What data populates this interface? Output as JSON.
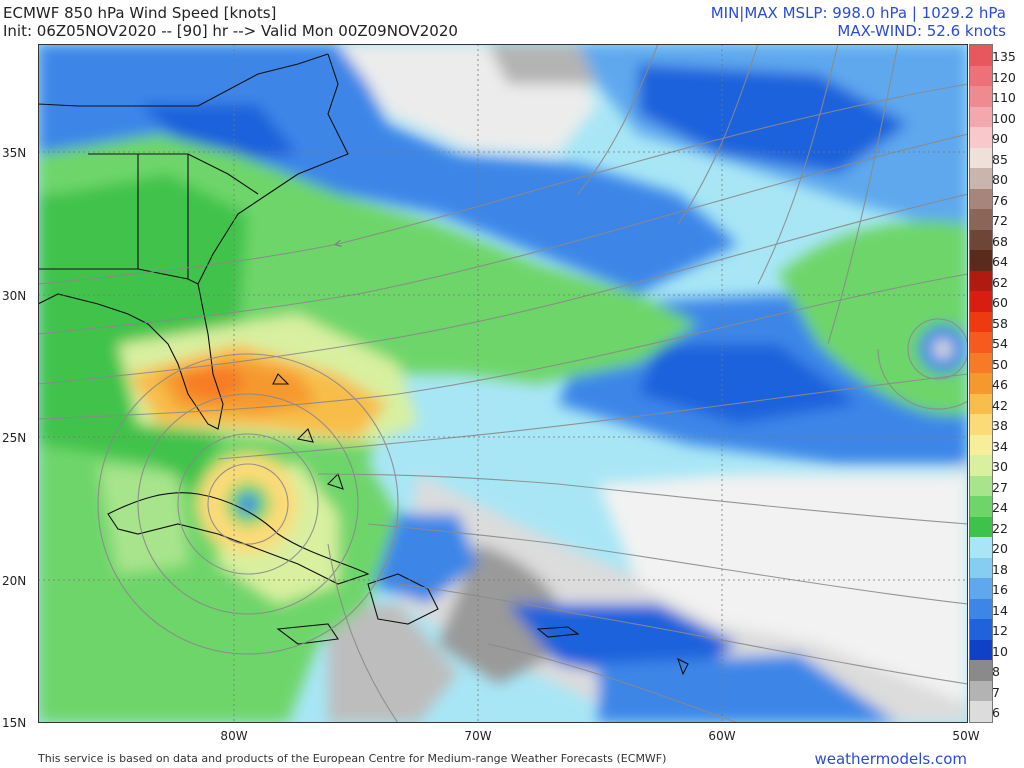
{
  "header": {
    "title": "ECMWF 850 hPa Wind Speed [knots]",
    "init": "Init: 06Z05NOV2020 -- [90] hr --> Valid Mon 00Z09NOV2020",
    "mslp": "MIN|MAX MSLP: 998.0 hPa | 1029.2 hPa",
    "maxwind": "MAX-WIND: 52.6 knots"
  },
  "axes": {
    "lat_labels": [
      "35N",
      "30N",
      "25N",
      "20N",
      "15N"
    ],
    "lon_labels": [
      "80W",
      "70W",
      "60W",
      "50W"
    ]
  },
  "colorbar": {
    "labels": [
      "135",
      "120",
      "110",
      "100",
      "90",
      "85",
      "80",
      "76",
      "72",
      "68",
      "64",
      "62",
      "60",
      "58",
      "54",
      "50",
      "46",
      "42",
      "38",
      "34",
      "30",
      "27",
      "24",
      "22",
      "20",
      "18",
      "16",
      "14",
      "12",
      "10",
      "8",
      "7",
      "6"
    ],
    "colors": [
      "#e8575e",
      "#ee7078",
      "#f08a91",
      "#f4a8ad",
      "#f9c8cb",
      "#efe0da",
      "#c9b5ae",
      "#a8847a",
      "#8a6558",
      "#6e4638",
      "#5a2a1c",
      "#b01a10",
      "#d81e10",
      "#ee3a10",
      "#f65a1c",
      "#f77a26",
      "#f5992f",
      "#f8bd4a",
      "#fbdb78",
      "#f7ee9a",
      "#d8f0a0",
      "#a8e48c",
      "#6ed56a",
      "#3fc24c",
      "#a8e6f6",
      "#86cdf2",
      "#5fa8ee",
      "#3d86e8",
      "#1f62dc",
      "#1040c6",
      "#8a8a8a",
      "#b3b3b3",
      "#dcdcdc"
    ]
  },
  "footer": {
    "credit": "This service is based on data and products of the European Centre for Medium-range Weather Forecasts (ECMWF)",
    "brand": "weathermodels.com"
  }
}
